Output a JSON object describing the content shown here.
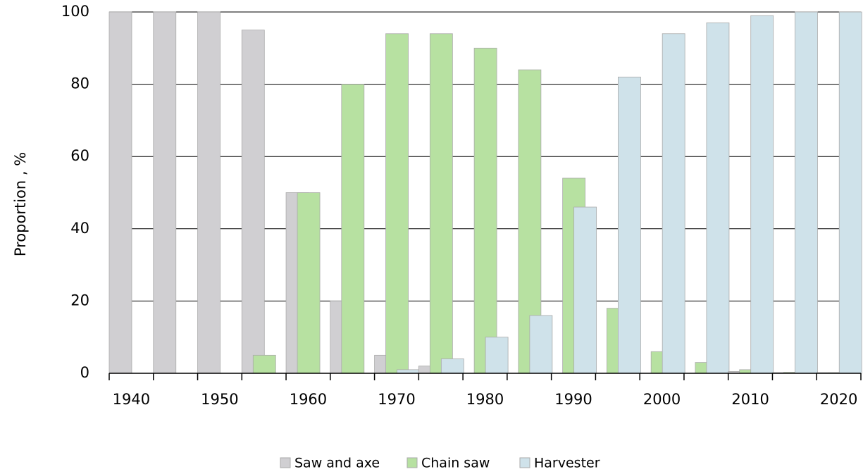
{
  "chart_data": {
    "type": "bar",
    "y_label": "Proportion , %",
    "categories": [
      "1940",
      null,
      "1950",
      null,
      "1960",
      null,
      "1970",
      null,
      "1980",
      null,
      "1990",
      null,
      "2000",
      null,
      "2010",
      null,
      "2020"
    ],
    "series": [
      {
        "name": "Saw and axe",
        "color": "#d0cfd2",
        "values": [
          100,
          100,
          100,
          95,
          50,
          20,
          5,
          2,
          0,
          0,
          0,
          0,
          0,
          0,
          0.5,
          0.2,
          0.2
        ]
      },
      {
        "name": "Chain saw",
        "color": "#b7e1a1",
        "values": [
          0,
          0,
          0,
          5,
          50,
          80,
          94,
          94,
          90,
          84,
          54,
          18,
          6,
          3,
          1,
          0.3,
          0.2
        ]
      },
      {
        "name": "Harvester",
        "color": "#cfe2ea",
        "values": [
          0,
          0,
          0,
          0,
          0,
          0,
          1,
          4,
          10,
          16,
          46,
          82,
          94,
          97,
          99,
          100,
          100
        ]
      }
    ],
    "ylim": [
      0,
      100
    ],
    "yticks": [
      0,
      20,
      40,
      60,
      80,
      100
    ],
    "grid": true
  }
}
